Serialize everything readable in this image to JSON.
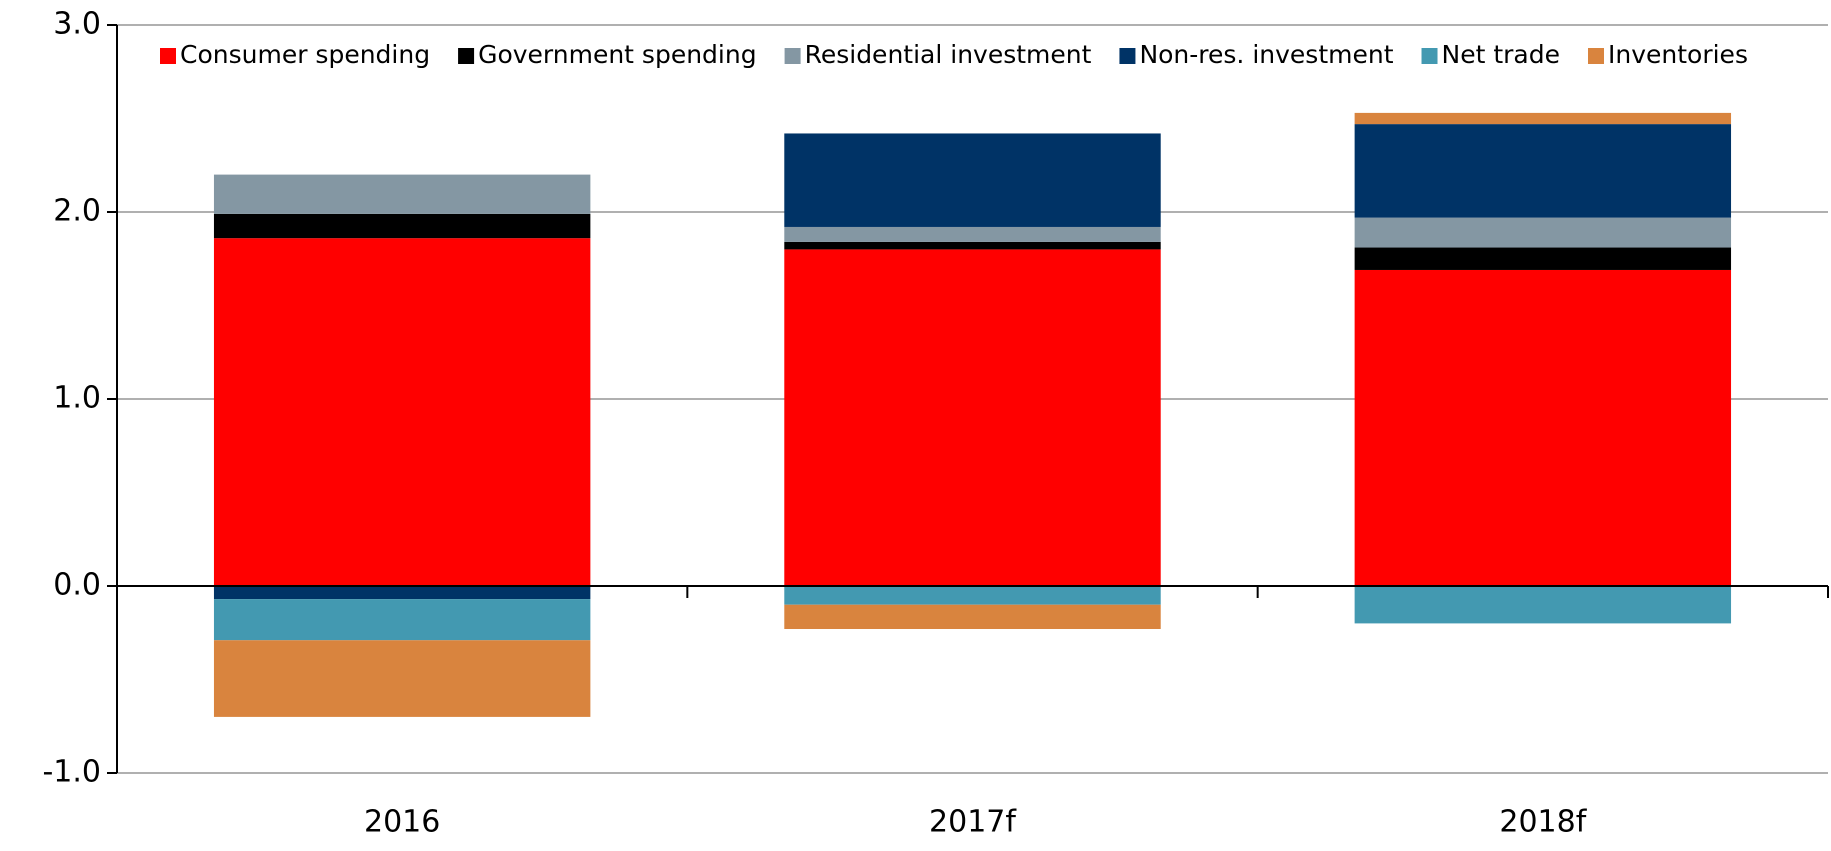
{
  "chart_data": {
    "type": "stacked_bar",
    "categories": [
      "2016",
      "2017f",
      "2018f"
    ],
    "series": [
      {
        "name": "Consumer spending",
        "color": "#ff0000",
        "values": [
          1.86,
          1.8,
          1.69
        ]
      },
      {
        "name": "Government spending",
        "color": "#000000",
        "values": [
          0.13,
          0.04,
          0.12
        ]
      },
      {
        "name": "Residential investment",
        "color": "#8497a3",
        "values": [
          0.21,
          0.08,
          0.16
        ]
      },
      {
        "name": "Non-res. investment",
        "color": "#003366",
        "values": [
          -0.07,
          0.5,
          0.5
        ]
      },
      {
        "name": "Net trade",
        "color": "#4399b1",
        "values": [
          -0.22,
          -0.1,
          -0.2
        ]
      },
      {
        "name": "Inventories",
        "color": "#d9843e",
        "values": [
          -0.41,
          -0.13,
          0.06
        ]
      }
    ],
    "ylim": [
      -1,
      3
    ],
    "yticks": [
      {
        "value": -1,
        "label": "-1.0"
      },
      {
        "value": 0,
        "label": "0.0"
      },
      {
        "value": 1,
        "label": "1.0"
      },
      {
        "value": 2,
        "label": "2.0"
      },
      {
        "value": 3,
        "label": "3.0"
      }
    ],
    "grid": true,
    "legend": "top"
  }
}
